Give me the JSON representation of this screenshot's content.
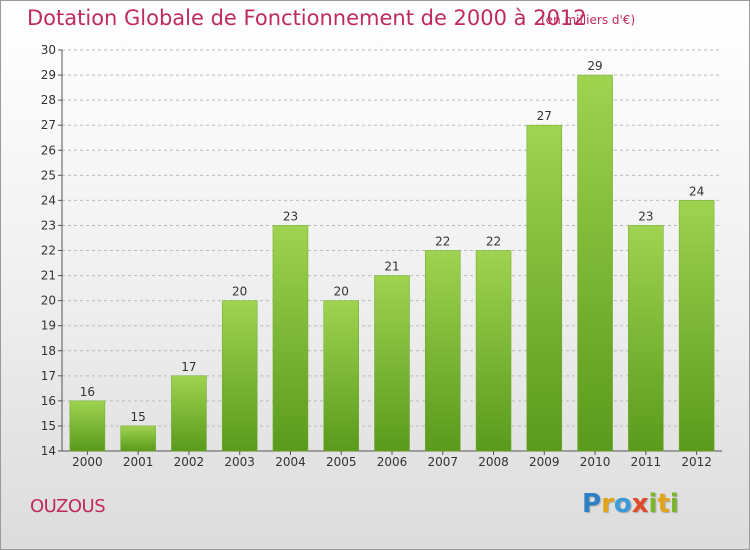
{
  "chart_data": {
    "type": "bar",
    "title": "Dotation Globale de Fonctionnement de 2000 à 2012",
    "subtitle": "(en milliers d'€)",
    "xlabel": "",
    "ylabel": "",
    "categories": [
      "2000",
      "2001",
      "2002",
      "2003",
      "2004",
      "2005",
      "2006",
      "2007",
      "2008",
      "2009",
      "2010",
      "2011",
      "2012"
    ],
    "values": [
      16,
      15,
      17,
      20,
      23,
      20,
      21,
      22,
      22,
      27,
      29,
      23,
      24
    ],
    "ylim": [
      14,
      30
    ],
    "yticks": [
      14,
      15,
      16,
      17,
      18,
      19,
      20,
      21,
      22,
      23,
      24,
      25,
      26,
      27,
      28,
      29,
      30
    ],
    "grid": true,
    "legend": "none",
    "bar_color": "#7cc02f",
    "bar_color_light": "#9fd350",
    "bar_color_dark": "#5a9a1c",
    "grid_color": "#bbbbbb"
  },
  "footer": {
    "commune": "OUZOUS",
    "brand": "Proxiti"
  },
  "colors": {
    "title": "#c0295f"
  }
}
